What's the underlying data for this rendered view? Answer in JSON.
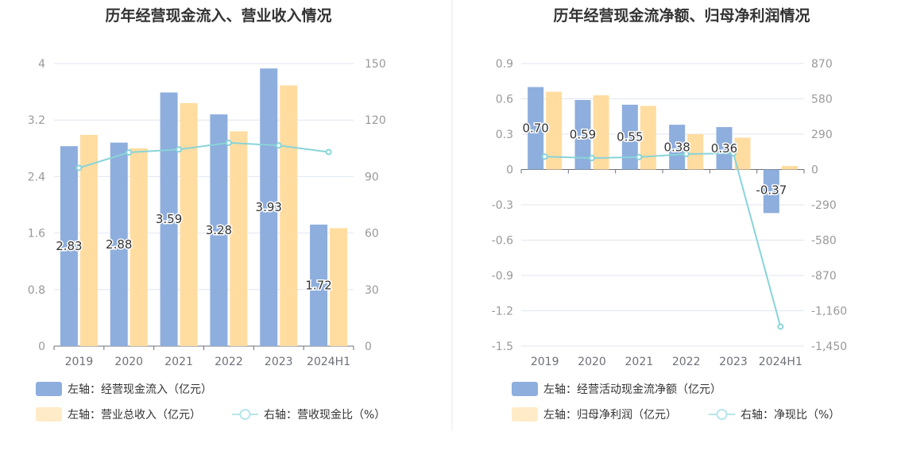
{
  "colors": {
    "bar1": "#8eaedd",
    "bar2": "#ffdca0",
    "line": "#88d4d8",
    "legend_bar2": "#ffebc7",
    "legend_line": "#b5e6ea",
    "grid": "#e0e6f1",
    "axis": "#6e7079",
    "tick": "#999999",
    "title": "#333333",
    "divider": "#e8e8e8"
  },
  "chart_data": [
    {
      "type": "bar",
      "title": "历年经营现金流入、营业收入情况",
      "categories": [
        "2019",
        "2020",
        "2021",
        "2022",
        "2023",
        "2024H1"
      ],
      "y_left": {
        "min": 0,
        "max": 4,
        "ticks": [
          "0",
          "0.8",
          "1.6",
          "2.4",
          "3.2",
          "4"
        ]
      },
      "y_right": {
        "min": 0,
        "max": 150,
        "ticks": [
          "0",
          "30",
          "60",
          "90",
          "120",
          "150"
        ]
      },
      "series": [
        {
          "name": "左轴：经营现金流入（亿元）",
          "kind": "bar",
          "axis": "left",
          "values": [
            2.83,
            2.88,
            3.59,
            3.28,
            3.93,
            1.72
          ],
          "labels": [
            "2.83",
            "2.88",
            "3.59",
            "3.28",
            "3.93",
            "1.72"
          ]
        },
        {
          "name": "左轴：营业总收入（亿元）",
          "kind": "bar",
          "axis": "left",
          "values": [
            2.99,
            2.8,
            3.44,
            3.04,
            3.69,
            1.67
          ]
        },
        {
          "name": "右轴：营收现金比（%）",
          "kind": "line",
          "axis": "right",
          "values": [
            94.6,
            102.8,
            104.4,
            107.9,
            106.5,
            103.0
          ]
        }
      ]
    },
    {
      "type": "bar",
      "title": "历年经营现金流净额、归母净利润情况",
      "categories": [
        "2019",
        "2020",
        "2021",
        "2022",
        "2023",
        "2024H1"
      ],
      "y_left": {
        "min": -1.5,
        "max": 0.9,
        "ticks": [
          "-1.5",
          "-1.2",
          "-0.9",
          "-0.6",
          "-0.3",
          "0",
          "0.3",
          "0.6",
          "0.9"
        ]
      },
      "y_right": {
        "min": -1450,
        "max": 870,
        "ticks": [
          "-1,450",
          "-1,160",
          "-870",
          "-580",
          "-290",
          "0",
          "290",
          "580",
          "870"
        ]
      },
      "series": [
        {
          "name": "左轴：经营活动现金流净额（亿元）",
          "kind": "bar",
          "axis": "left",
          "values": [
            0.7,
            0.59,
            0.55,
            0.38,
            0.36,
            -0.37
          ],
          "labels": [
            "0.70",
            "0.59",
            "0.55",
            "0.38",
            "0.36",
            "-0.37"
          ]
        },
        {
          "name": "左轴：归母净利润（亿元）",
          "kind": "bar",
          "axis": "left",
          "values": [
            0.66,
            0.63,
            0.54,
            0.3,
            0.27,
            0.03
          ]
        },
        {
          "name": "右轴：净现比（%）",
          "kind": "line",
          "axis": "right",
          "values": [
            106,
            94,
            102,
            127,
            133,
            -1290
          ]
        }
      ]
    }
  ]
}
